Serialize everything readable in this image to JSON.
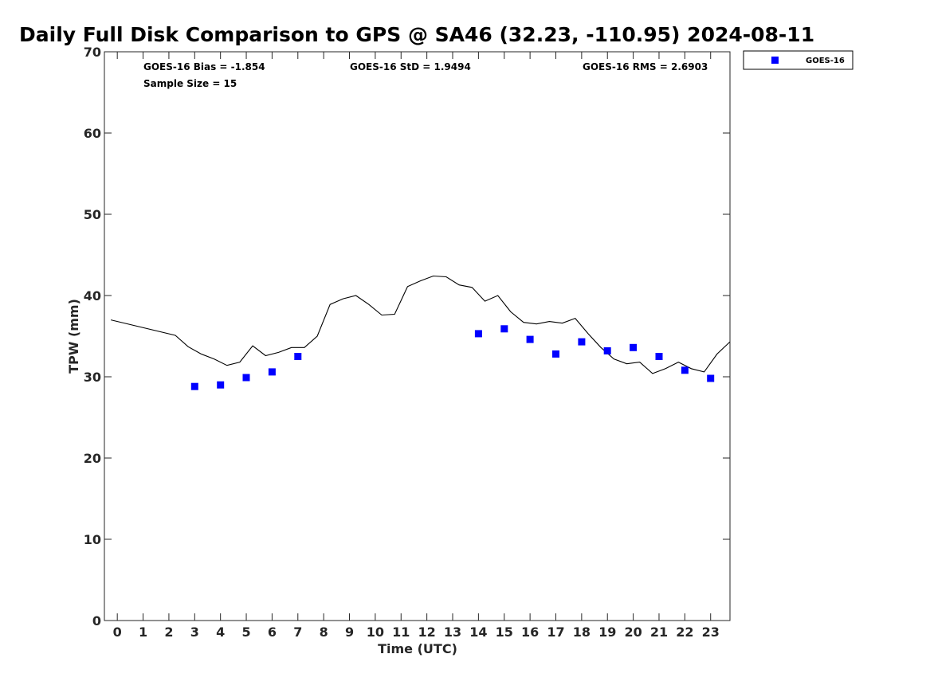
{
  "chart_data": {
    "type": "scatter",
    "title": "Daily Full Disk Comparison to GPS @ SA46 (32.23, -110.95) 2024-08-11",
    "xlabel": "Time (UTC)",
    "ylabel": "TPW (mm)",
    "xlim": [
      -0.5,
      23.75
    ],
    "ylim": [
      0,
      70
    ],
    "xticks": [
      "0",
      "1",
      "2",
      "3",
      "4",
      "5",
      "6",
      "7",
      "8",
      "9",
      "10",
      "11",
      "12",
      "13",
      "14",
      "15",
      "16",
      "17",
      "18",
      "19",
      "20",
      "21",
      "22",
      "23"
    ],
    "yticks": [
      "0",
      "10",
      "20",
      "30",
      "40",
      "50",
      "60",
      "70"
    ],
    "grid": false,
    "legend": {
      "position": "outside-top-right",
      "entries": [
        "GOES-16"
      ]
    },
    "stats": {
      "bias": "GOES-16 Bias = -1.854",
      "sample": "Sample Size = 15",
      "std": "GOES-16 StD = 1.9494",
      "rms": "GOES-16 RMS = 2.6903"
    },
    "series": [
      {
        "name": "GOES-16",
        "marker": "square",
        "color": "#0000ff",
        "x": [
          3,
          4,
          5,
          6,
          7,
          14,
          15,
          16,
          17,
          18,
          19,
          20,
          21,
          22,
          23
        ],
        "y": [
          28.8,
          29.0,
          29.9,
          30.6,
          32.5,
          35.3,
          35.9,
          34.6,
          32.8,
          34.3,
          33.2,
          33.6,
          32.5,
          30.8,
          29.8
        ]
      },
      {
        "marker": "line",
        "color": "#000000",
        "x": [
          -0.25,
          2.25,
          2.75,
          3.25,
          3.75,
          4.25,
          4.75,
          5.25,
          5.75,
          6.25,
          6.75,
          7.25,
          7.75,
          8.25,
          8.75,
          9.25,
          9.75,
          10.25,
          10.75,
          11.25,
          11.75,
          12.25,
          12.75,
          13.25,
          13.75,
          14.25,
          14.75,
          15.25,
          15.75,
          16.25,
          16.75,
          17.25,
          17.75,
          18.25,
          18.75,
          19.25,
          19.75,
          20.25,
          20.75,
          21.25,
          21.75,
          22.25,
          22.75,
          23.25,
          23.75
        ],
        "y": [
          37.0,
          35.1,
          33.7,
          32.8,
          32.2,
          31.4,
          31.8,
          33.8,
          32.6,
          33.0,
          33.6,
          33.6,
          35.0,
          38.9,
          39.6,
          40.0,
          38.9,
          37.6,
          37.7,
          41.1,
          41.8,
          42.4,
          42.3,
          41.3,
          41.0,
          39.3,
          40.0,
          38.0,
          36.7,
          36.5,
          36.8,
          36.6,
          37.2,
          35.3,
          33.6,
          32.2,
          31.6,
          31.8,
          30.4,
          31.0,
          31.8,
          31.0,
          30.6,
          32.8,
          34.3
        ]
      }
    ]
  }
}
